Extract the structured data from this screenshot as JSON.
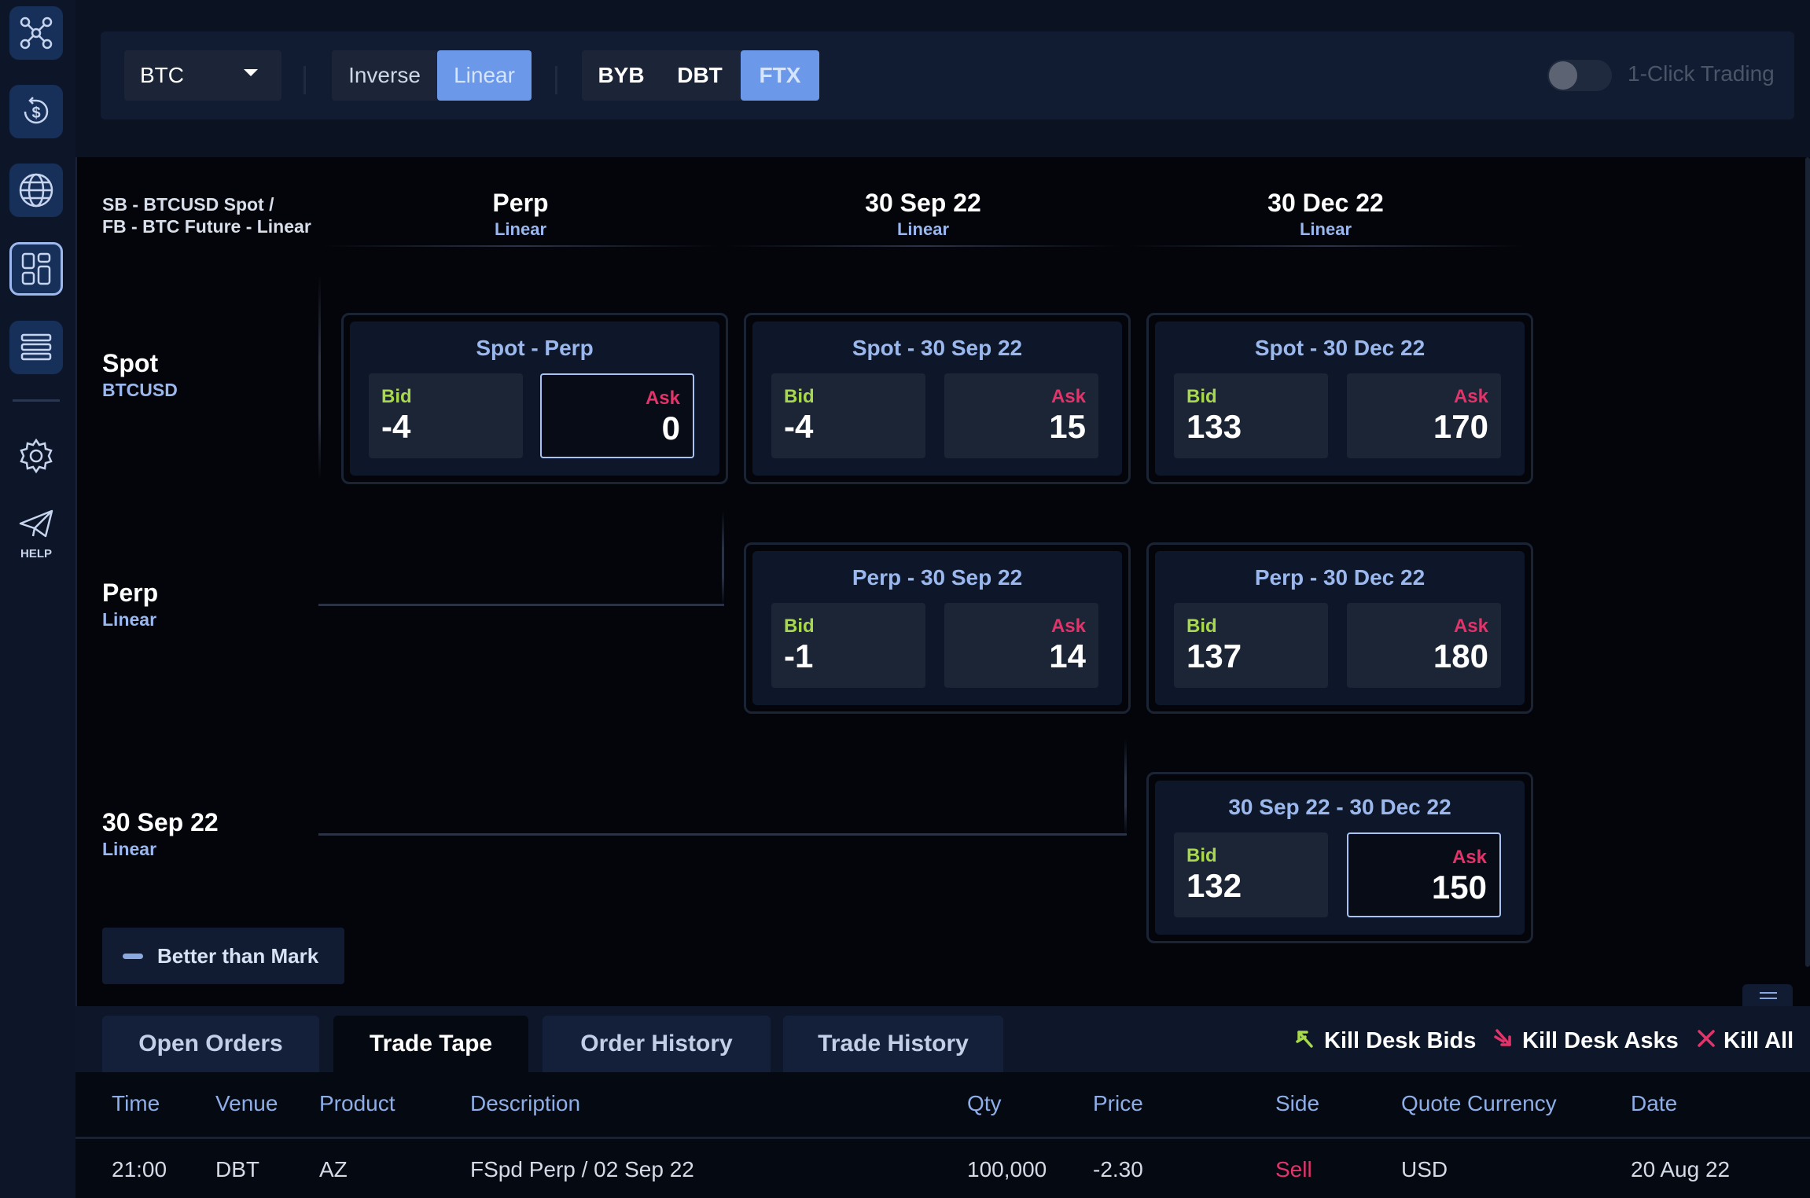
{
  "sidebar": {
    "items": [
      {
        "name": "network-icon"
      },
      {
        "name": "dollar-icon"
      },
      {
        "name": "globe-icon"
      },
      {
        "name": "dashboard-icon"
      },
      {
        "name": "list-icon"
      },
      {
        "name": "gear-icon"
      },
      {
        "name": "send-icon"
      }
    ],
    "help_label": "HELP"
  },
  "toolbar": {
    "asset_select": "BTC",
    "contract_types": [
      "Inverse",
      "Linear"
    ],
    "contract_type_selected": "Linear",
    "venues": [
      "BYB",
      "DBT",
      "FTX"
    ],
    "venue_selected": "FTX",
    "one_click_label": "1-Click Trading",
    "one_click_on": false
  },
  "matrix": {
    "corner_label_line1": "SB - BTCUSD Spot /",
    "corner_label_line2": "FB - BTC Future - Linear",
    "columns": [
      {
        "title": "Perp",
        "subtitle": "Linear"
      },
      {
        "title": "30 Sep 22",
        "subtitle": "Linear"
      },
      {
        "title": "30 Dec 22",
        "subtitle": "Linear"
      }
    ],
    "rows": [
      {
        "title": "Spot",
        "subtitle": "BTCUSD"
      },
      {
        "title": "Perp",
        "subtitle": "Linear"
      },
      {
        "title": "30 Sep 22",
        "subtitle": "Linear"
      }
    ],
    "cards": [
      {
        "title": "Spot - Perp",
        "bid_label": "Bid",
        "bid": "-4",
        "ask_label": "Ask",
        "ask": "0",
        "ask_selected": true
      },
      {
        "title": "Spot - 30 Sep 22",
        "bid_label": "Bid",
        "bid": "-4",
        "ask_label": "Ask",
        "ask": "15",
        "ask_selected": false
      },
      {
        "title": "Spot - 30 Dec 22",
        "bid_label": "Bid",
        "bid": "133",
        "ask_label": "Ask",
        "ask": "170",
        "ask_selected": false
      },
      {
        "title": "Perp - 30 Sep 22",
        "bid_label": "Bid",
        "bid": "-1",
        "ask_label": "Ask",
        "ask": "14",
        "ask_selected": false
      },
      {
        "title": "Perp - 30 Dec 22",
        "bid_label": "Bid",
        "bid": "137",
        "ask_label": "Ask",
        "ask": "180",
        "ask_selected": false
      },
      {
        "title": "30 Sep 22 - 30 Dec 22",
        "bid_label": "Bid",
        "bid": "132",
        "ask_label": "Ask",
        "ask": "150",
        "ask_selected": true
      }
    ],
    "legend_label": "Better than Mark"
  },
  "bottom": {
    "tabs": [
      "Open Orders",
      "Trade Tape",
      "Order History",
      "Trade History"
    ],
    "active_tab": "Trade Tape",
    "actions": {
      "kill_bids": "Kill Desk Bids",
      "kill_asks": "Kill Desk Asks",
      "kill_all": "Kill All"
    },
    "table": {
      "columns": [
        "Time",
        "Venue",
        "Product",
        "Description",
        "Qty",
        "Price",
        "Side",
        "Quote Currency",
        "Date"
      ],
      "rows": [
        {
          "time": "21:00",
          "venue": "DBT",
          "product": "AZ",
          "description": "FSpd Perp / 02 Sep 22",
          "qty": "100,000",
          "price": "-2.30",
          "side": "Sell",
          "quote_currency": "USD",
          "date": "20 Aug 22"
        }
      ]
    }
  },
  "colors": {
    "accent": "#6b98e8",
    "bid": "#a8d84c",
    "ask": "#e2336a",
    "sell": "#e2336a",
    "kill_bids": "#a8d84c",
    "kill_asks": "#e2336a",
    "kill_all": "#e2336a"
  }
}
